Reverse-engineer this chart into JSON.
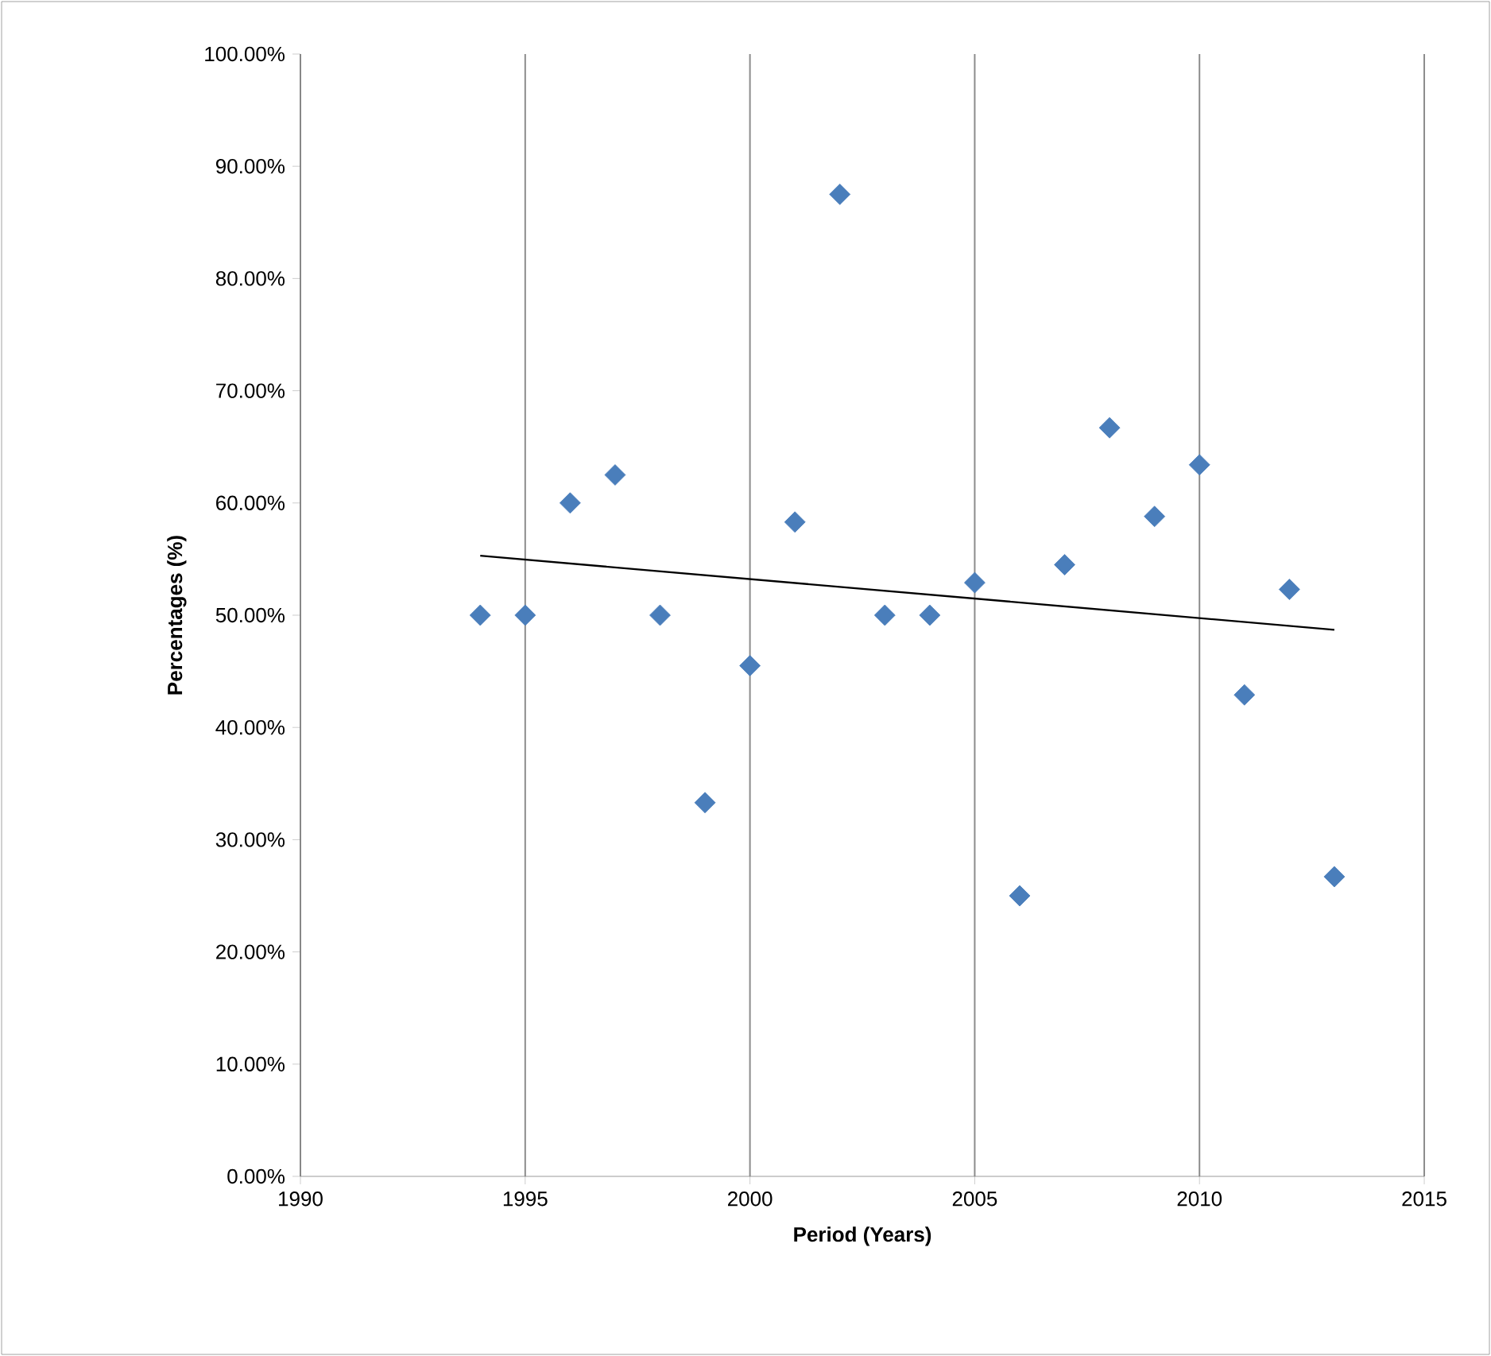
{
  "chart_data": {
    "type": "scatter",
    "xlabel": "Period (Years)",
    "ylabel": "Percentages (%)",
    "xlim": [
      1990,
      2015
    ],
    "xticks": [
      1990,
      1995,
      2000,
      2005,
      2010,
      2015
    ],
    "ylim": [
      0,
      100
    ],
    "yticks": [
      {
        "value": 0,
        "label": "0.00%"
      },
      {
        "value": 10,
        "label": "10.00%"
      },
      {
        "value": 20,
        "label": "20.00%"
      },
      {
        "value": 30,
        "label": "30.00%"
      },
      {
        "value": 40,
        "label": "40.00%"
      },
      {
        "value": 50,
        "label": "50.00%"
      },
      {
        "value": 60,
        "label": "60.00%"
      },
      {
        "value": 70,
        "label": "70.00%"
      },
      {
        "value": 80,
        "label": "80.00%"
      },
      {
        "value": 90,
        "label": "90.00%"
      },
      {
        "value": 100,
        "label": "100.00%"
      }
    ],
    "grid": "x",
    "marker": "diamond",
    "series": [
      {
        "color": "#4a7ebb",
        "x": [
          1994,
          1995,
          1996,
          1997,
          1998,
          1999,
          2000,
          2001,
          2002,
          2003,
          2004,
          2005,
          2006,
          2007,
          2008,
          2009,
          2010,
          2011,
          2012,
          2013
        ],
        "values": [
          50.0,
          50.0,
          60.0,
          62.5,
          50.0,
          33.3,
          45.5,
          58.3,
          87.5,
          50.0,
          50.0,
          52.9,
          25.0,
          54.5,
          66.7,
          58.8,
          63.4,
          42.9,
          52.3,
          26.7
        ]
      },
      {
        "type": "line",
        "color": "#000000",
        "marker": "none",
        "x": [
          1994,
          2013
        ],
        "values": [
          55.3,
          48.7
        ]
      }
    ]
  }
}
